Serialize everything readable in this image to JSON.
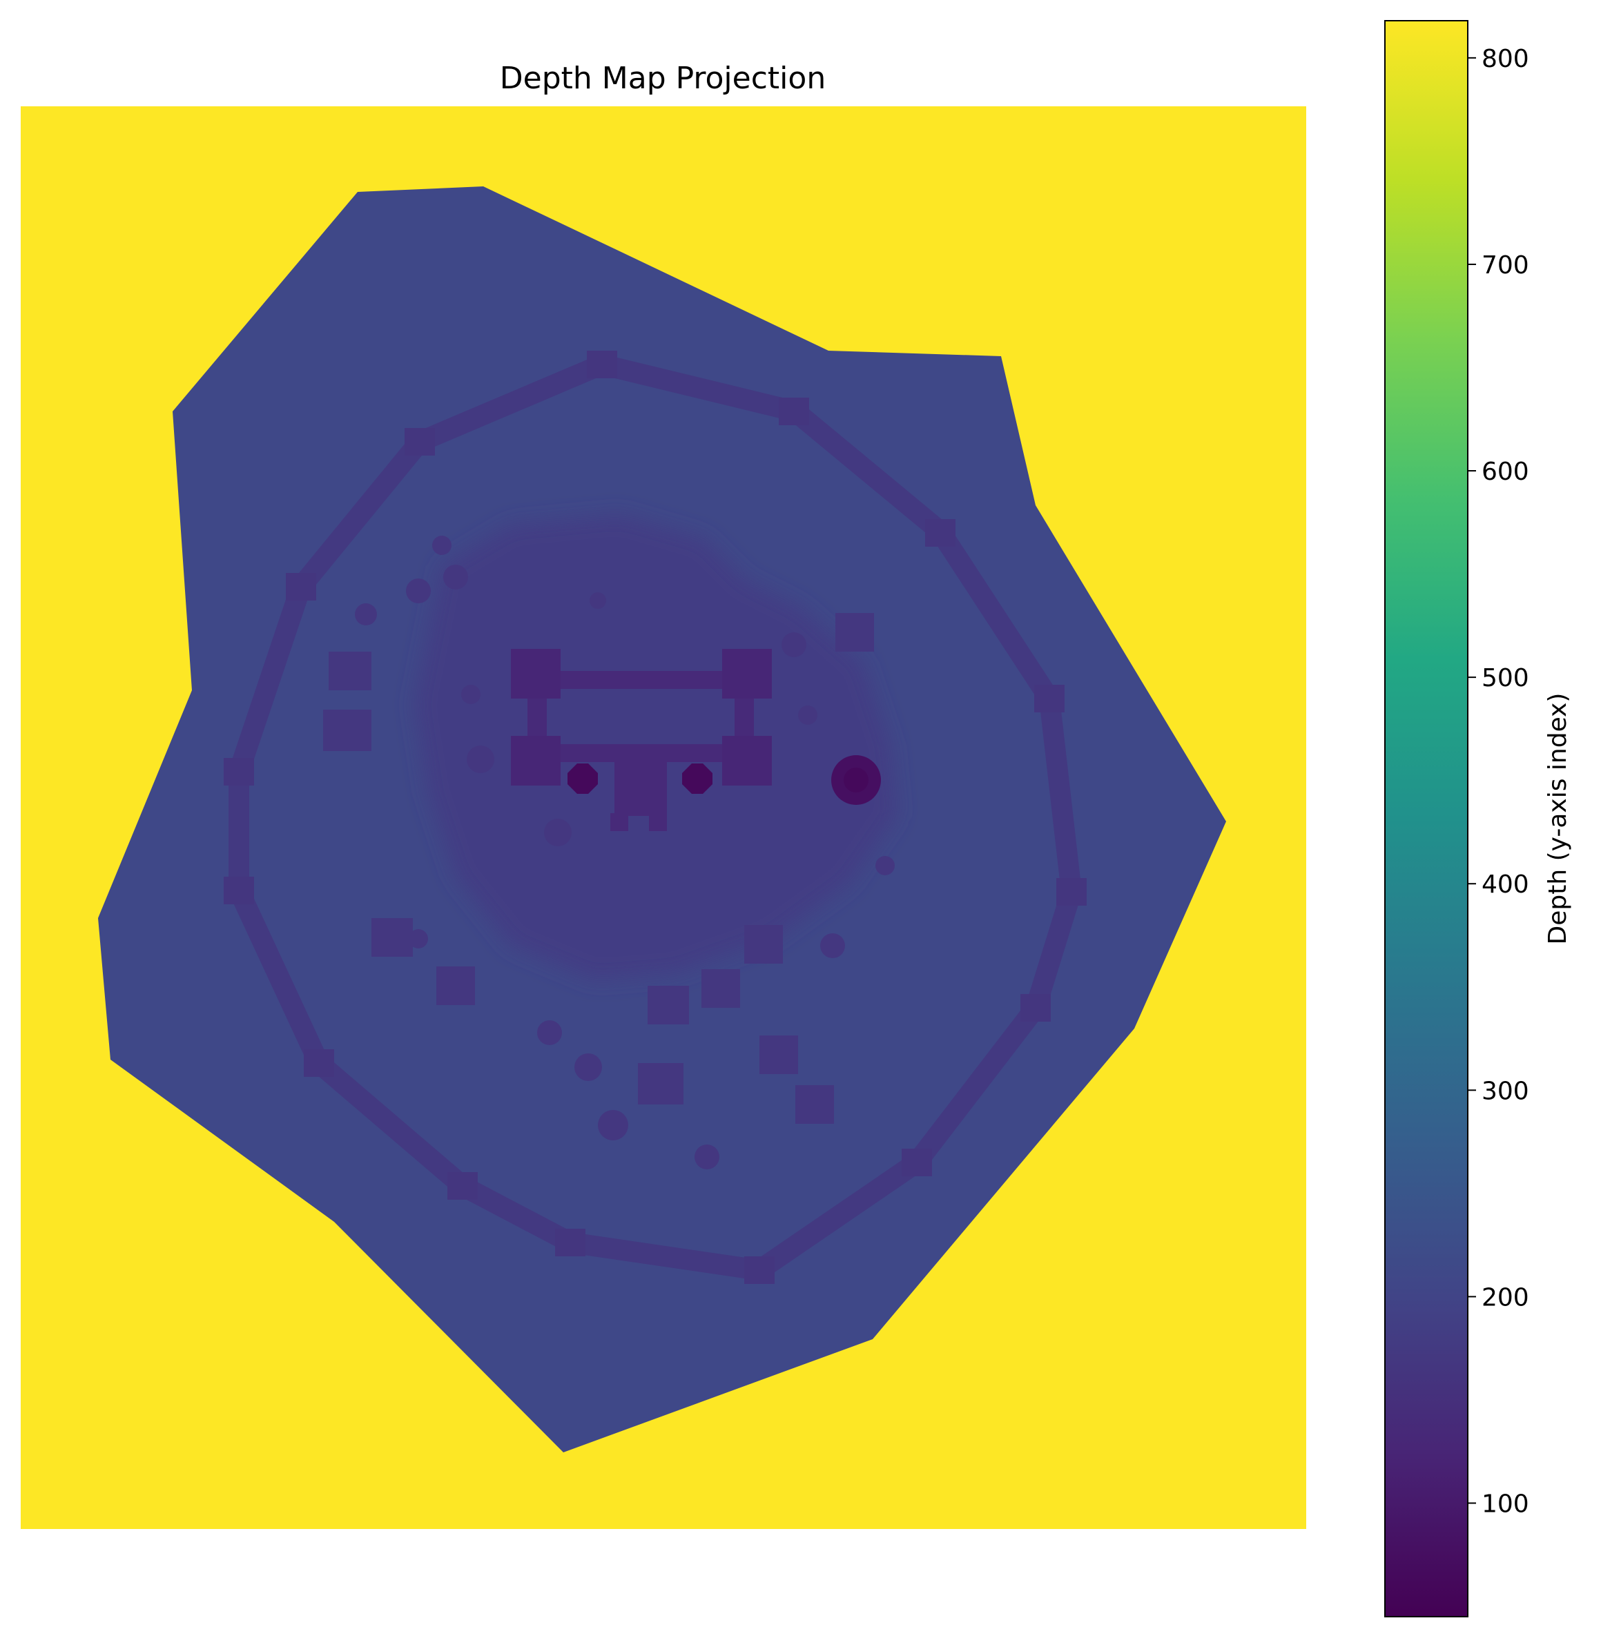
{
  "chart_data": {
    "type": "heatmap",
    "title": "Depth Map Projection",
    "axes_visible": false,
    "colormap": "viridis",
    "background_value": 818,
    "colorbar": {
      "label": "Depth (y-axis index)",
      "range": [
        45,
        818
      ],
      "ticks": [
        100,
        200,
        300,
        400,
        500,
        600,
        700,
        800
      ],
      "tick_labels": [
        "100",
        "200",
        "300",
        "400",
        "500",
        "600",
        "700",
        "800"
      ]
    },
    "regions": [
      {
        "name": "terrain",
        "value": 210
      },
      {
        "name": "outer-wall",
        "value": 172
      },
      {
        "name": "wall-towers",
        "value": 165
      },
      {
        "name": "inner-plateau",
        "value": 185
      },
      {
        "name": "buildings",
        "value": 168
      },
      {
        "name": "keep",
        "value": 138
      },
      {
        "name": "keep-towers",
        "value": 128
      },
      {
        "name": "well",
        "value": 75
      },
      {
        "name": "octagon-posts",
        "value": 62
      }
    ]
  }
}
